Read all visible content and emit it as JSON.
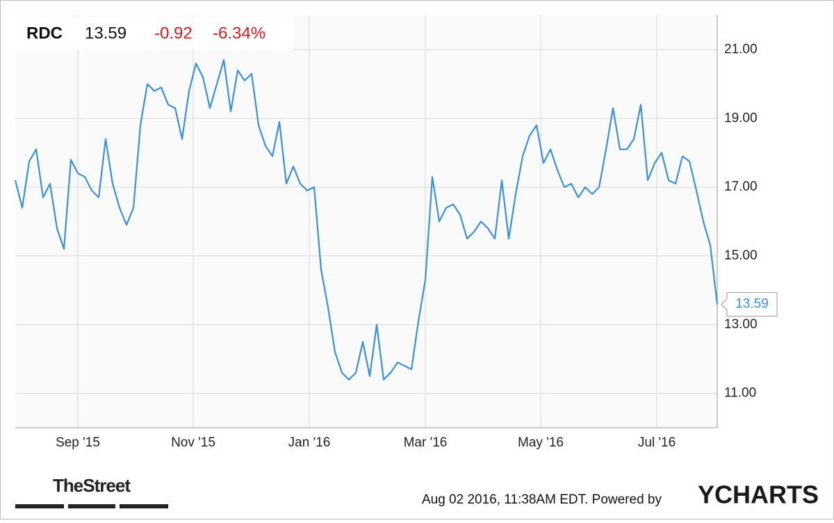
{
  "chart_data": {
    "type": "line",
    "header": {
      "ticker": "RDC",
      "price": "13.59",
      "change": "-0.92",
      "change_pct": "-6.34%"
    },
    "series": [
      {
        "name": "RDC",
        "color": "#3a8fde",
        "values": [
          17.2,
          16.4,
          17.75,
          18.1,
          16.7,
          17.1,
          15.8,
          15.2,
          17.8,
          17.4,
          17.3,
          16.9,
          16.7,
          18.4,
          17.1,
          16.4,
          15.9,
          16.4,
          18.8,
          20.0,
          19.8,
          19.9,
          19.4,
          19.3,
          18.4,
          19.8,
          20.6,
          20.2,
          19.3,
          20.0,
          20.7,
          19.2,
          20.4,
          20.1,
          20.3,
          18.8,
          18.2,
          17.9,
          18.9,
          17.1,
          17.6,
          17.1,
          16.9,
          17.0,
          14.6,
          13.5,
          12.2,
          11.6,
          11.4,
          11.6,
          12.5,
          11.5,
          13.0,
          11.4,
          11.6,
          11.9,
          11.8,
          11.7,
          13.1,
          14.3,
          17.3,
          16.0,
          16.4,
          16.5,
          16.2,
          15.5,
          15.7,
          16.0,
          15.8,
          15.5,
          17.2,
          15.5,
          16.8,
          17.9,
          18.5,
          18.8,
          17.7,
          18.1,
          17.5,
          17.0,
          17.1,
          16.7,
          17.0,
          16.8,
          17.0,
          18.1,
          19.3,
          18.1,
          18.1,
          18.4,
          19.4,
          17.2,
          17.7,
          18.0,
          17.2,
          17.1,
          17.9,
          17.75,
          16.9,
          16.0,
          15.3,
          13.59
        ]
      }
    ],
    "xlim": [
      0,
      101
    ],
    "xticks": [
      {
        "value": 9,
        "label": "Sep '15"
      },
      {
        "value": 25.6,
        "label": "Nov '15"
      },
      {
        "value": 42.3,
        "label": "Jan '16"
      },
      {
        "value": 59,
        "label": "Mar '16"
      },
      {
        "value": 75.6,
        "label": "May '16"
      },
      {
        "value": 92.3,
        "label": "Jul '16"
      }
    ],
    "ylim": [
      10,
      22
    ],
    "yticks": [
      {
        "value": 11,
        "label": "11.00"
      },
      {
        "value": 13,
        "label": "13.00"
      },
      {
        "value": 15,
        "label": "15.00"
      },
      {
        "value": 17,
        "label": "17.00"
      },
      {
        "value": 19,
        "label": "19.00"
      },
      {
        "value": 21,
        "label": "21.00"
      }
    ],
    "grid": true
  },
  "footer": {
    "source": "TheStreet",
    "timestamp": "Aug 02 2016, 11:38AM EDT. Powered by",
    "brand": "YCHARTS"
  }
}
